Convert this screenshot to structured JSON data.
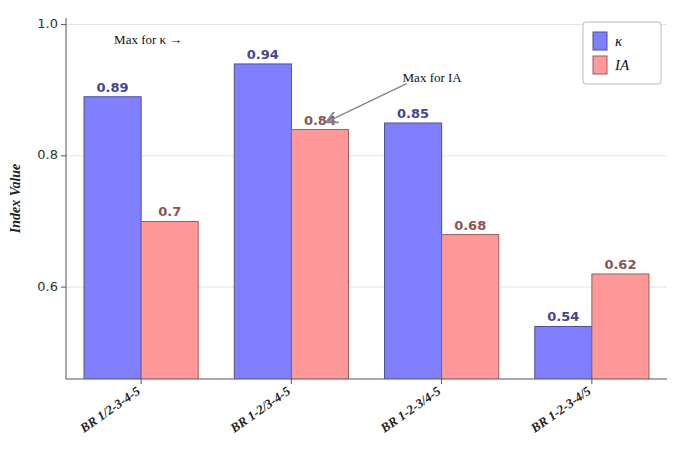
{
  "chart_data": {
    "type": "bar",
    "ylabel": "Index Value",
    "categories": [
      "BR 1/2-3-4-5",
      "BR 1-2/3-4-5",
      "BR 1-2-3/4-5",
      "BR 1-2-3-4/5"
    ],
    "series": [
      {
        "name": "κ",
        "color": "#8080FF",
        "values": [
          0.89,
          0.94,
          0.85,
          0.54
        ]
      },
      {
        "name": "IA",
        "color": "#FF9999",
        "values": [
          0.7,
          0.84,
          0.68,
          0.62
        ]
      }
    ],
    "ylim": [
      0.46,
      1.01
    ],
    "yticks": [
      0.6,
      0.8,
      {
        "value": 1.0,
        "label": "1.0"
      }
    ],
    "grid": true,
    "legend": "upper right",
    "data_labels": true,
    "annotations": [
      {
        "text": "Max for κ →"
      },
      {
        "text": "Max for IA"
      }
    ]
  }
}
